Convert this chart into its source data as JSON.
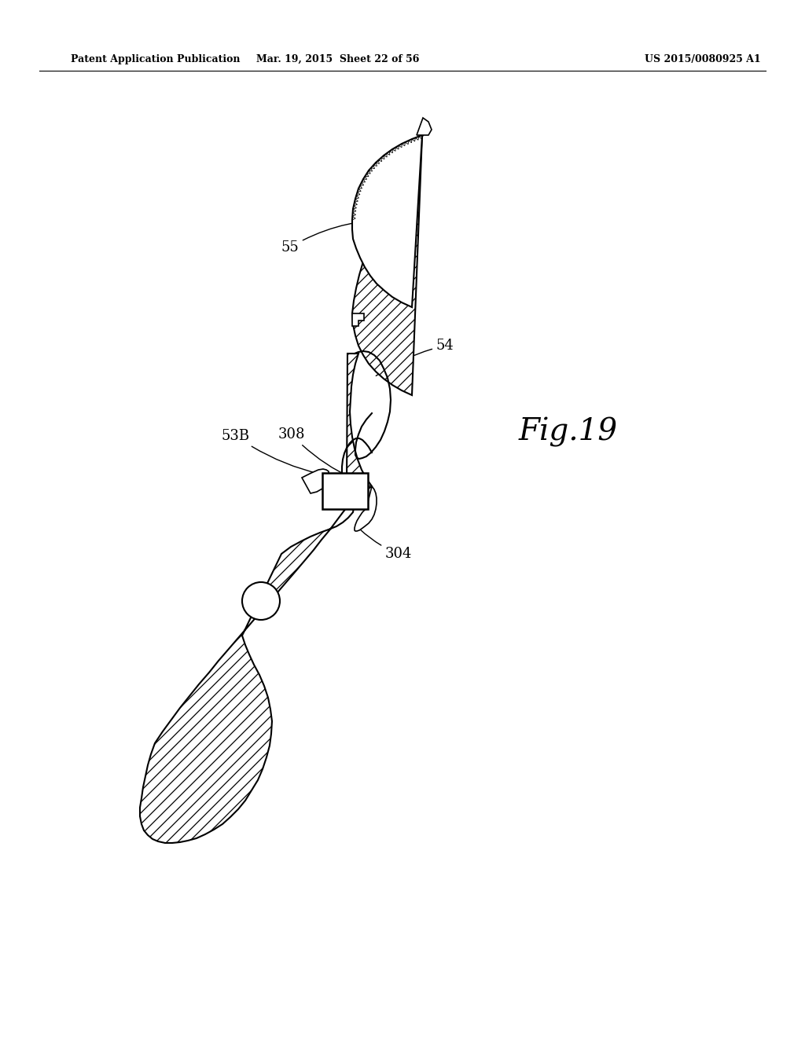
{
  "background_color": "#ffffff",
  "header_left": "Patent Application Publication",
  "header_mid": "Mar. 19, 2015  Sheet 22 of 56",
  "header_right": "US 2015/0080925 A1",
  "fig_label": "Fig.19",
  "label_fontsize": 13,
  "fig_label_fontsize": 28
}
